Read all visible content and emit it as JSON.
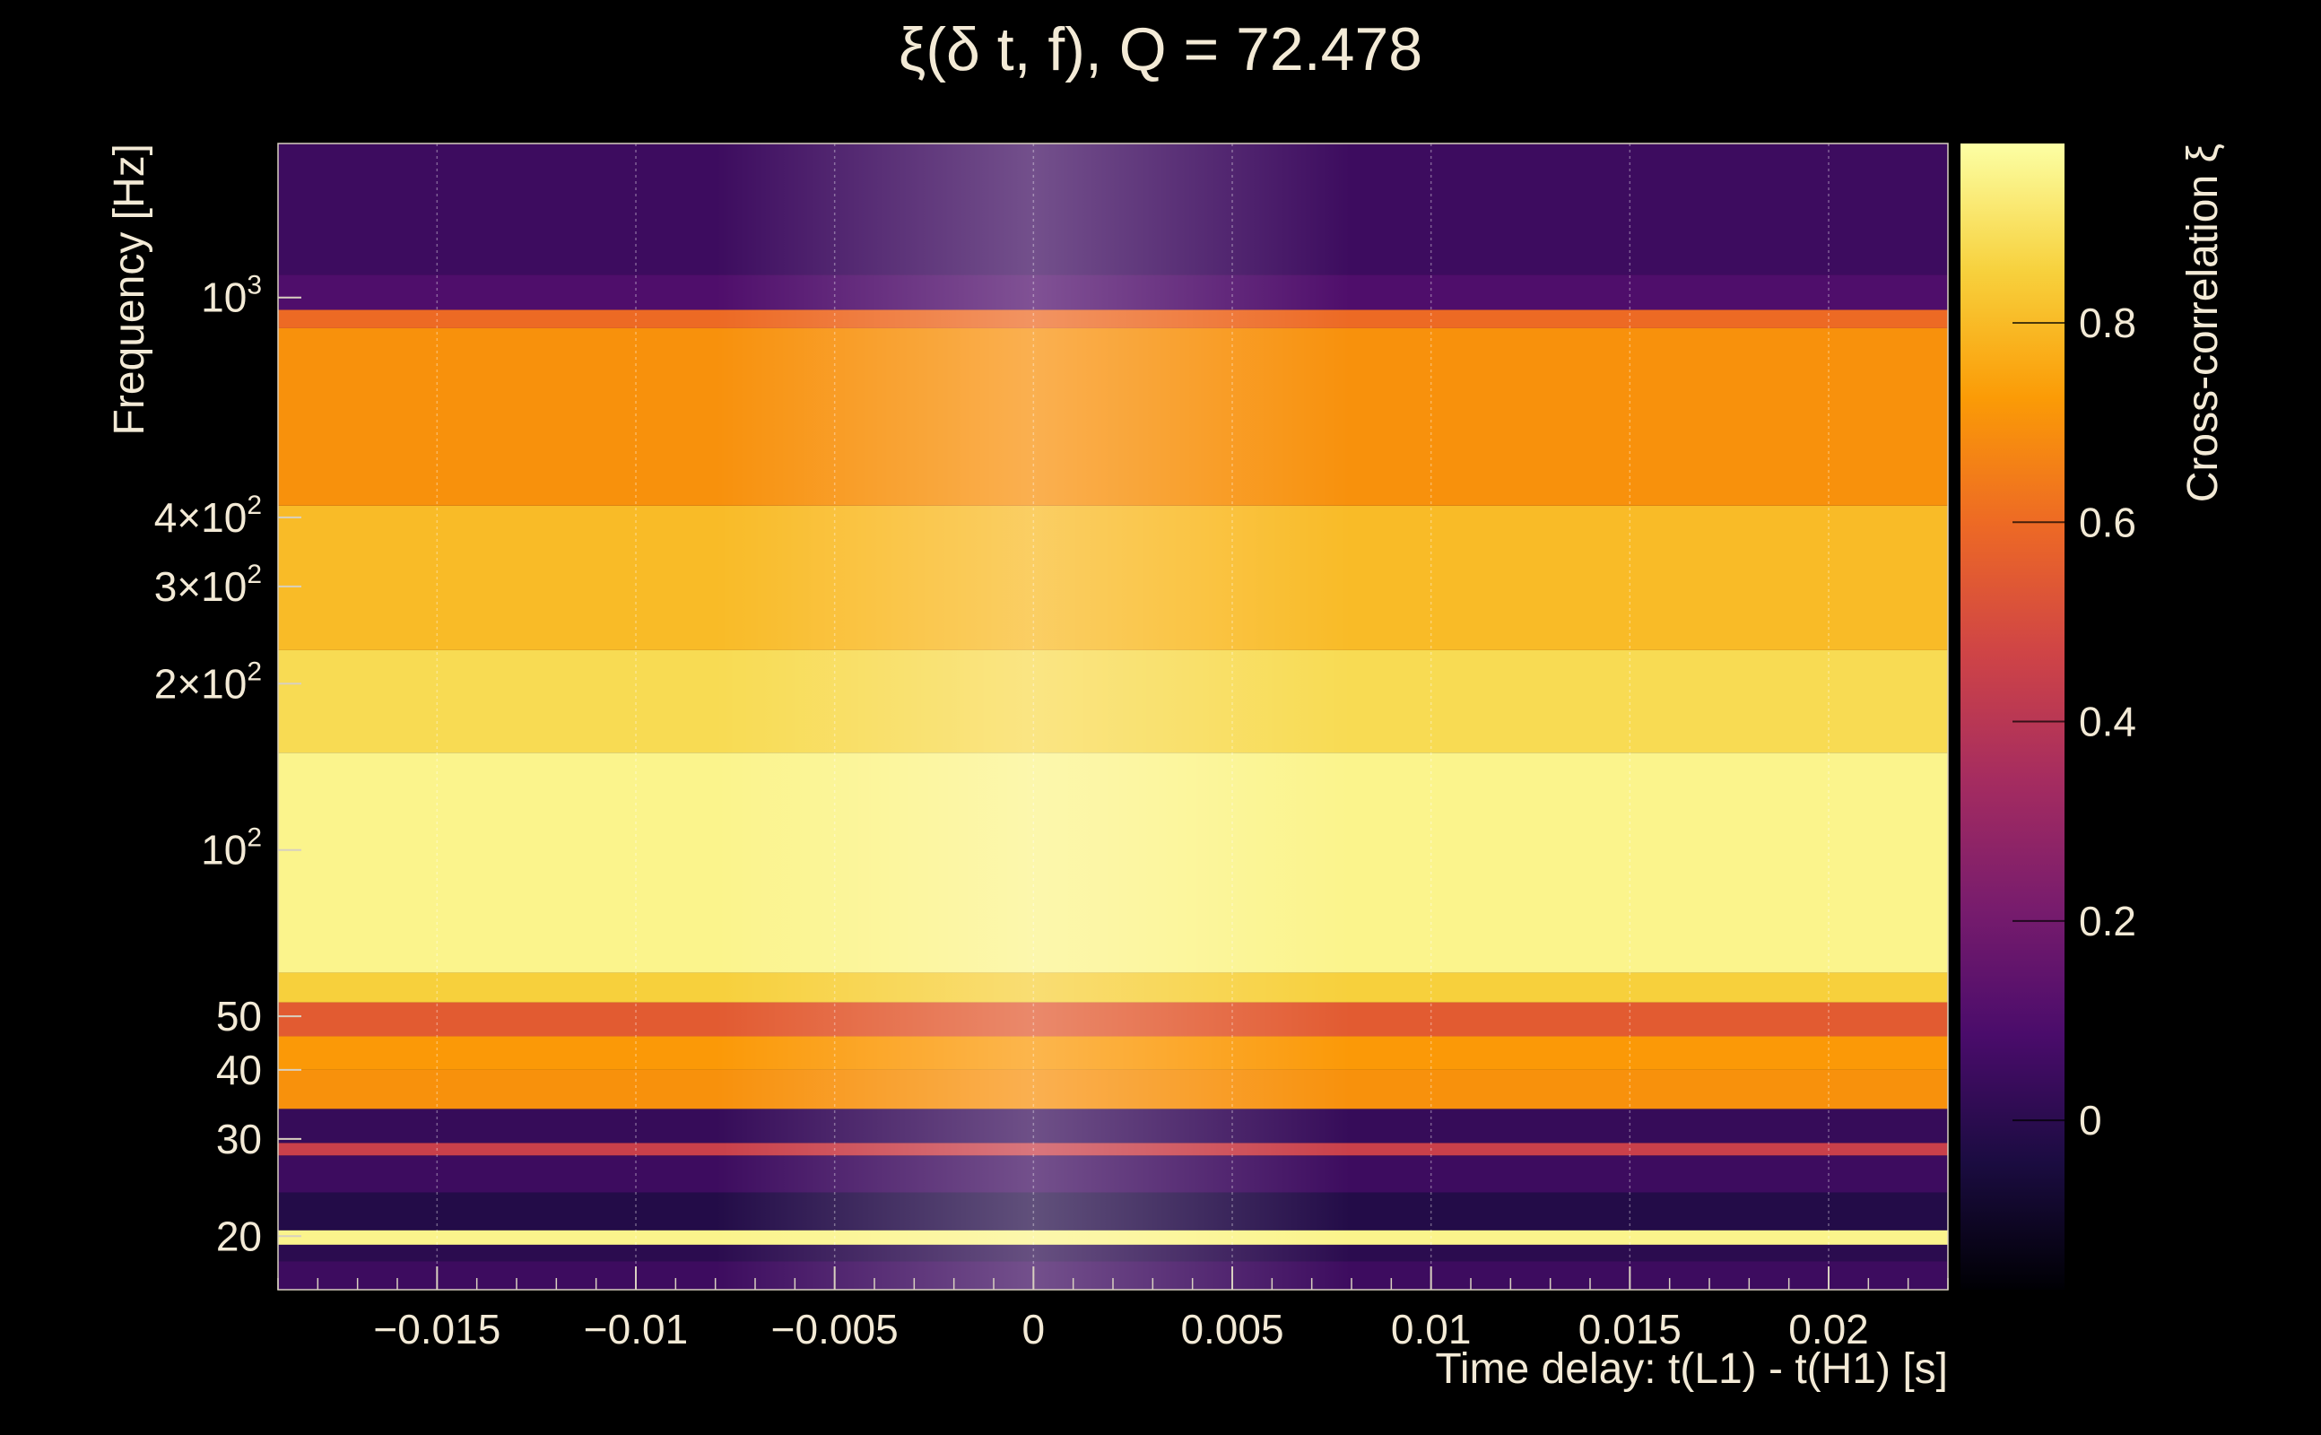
{
  "chart_data": {
    "type": "heatmap",
    "title": "ξ(δ t, f), Q = 72.478",
    "xlabel": "Time delay: t(L1) - t(H1) [s]",
    "ylabel": "Frequency [Hz]",
    "colorbar_label": "Cross-correlation ξ",
    "xlim": [
      -0.019,
      0.023
    ],
    "ylim": [
      16,
      1900
    ],
    "y_scale": "log",
    "grid": "vertical",
    "x_ticks": [
      {
        "value": -0.015,
        "label": "−0.015"
      },
      {
        "value": -0.01,
        "label": "−0.01"
      },
      {
        "value": -0.005,
        "label": "−0.005"
      },
      {
        "value": 0,
        "label": "0"
      },
      {
        "value": 0.005,
        "label": "0.005"
      },
      {
        "value": 0.01,
        "label": "0.01"
      },
      {
        "value": 0.015,
        "label": "0.015"
      },
      {
        "value": 0.02,
        "label": "0.02"
      }
    ],
    "y_ticks": [
      {
        "value": 20,
        "base": "20",
        "sup": ""
      },
      {
        "value": 30,
        "base": "30",
        "sup": ""
      },
      {
        "value": 40,
        "base": "40",
        "sup": ""
      },
      {
        "value": 50,
        "base": "50",
        "sup": ""
      },
      {
        "value": 100,
        "base": "10",
        "sup": "2"
      },
      {
        "value": 200,
        "base": "2×10",
        "sup": "2"
      },
      {
        "value": 300,
        "base": "3×10",
        "sup": "2"
      },
      {
        "value": 400,
        "base": "4×10",
        "sup": "2"
      },
      {
        "value": 1000,
        "base": "10",
        "sup": "3"
      }
    ],
    "colorbar": {
      "range": [
        -0.17,
        0.98
      ],
      "ticks": [
        {
          "value": 0,
          "label": "0"
        },
        {
          "value": 0.2,
          "label": "0.2"
        },
        {
          "value": 0.4,
          "label": "0.4"
        },
        {
          "value": 0.6,
          "label": "0.6"
        },
        {
          "value": 0.8,
          "label": "0.8"
        }
      ],
      "colormap": [
        "#000004",
        "#1b0c41",
        "#4a0c6b",
        "#781c6d",
        "#a52c60",
        "#cf4446",
        "#ed6925",
        "#fb9b06",
        "#f7d13d",
        "#fcffa4"
      ]
    },
    "bands": [
      {
        "f_low": 16,
        "f_high": 18,
        "value": 0.05
      },
      {
        "f_low": 18,
        "f_high": 19.3,
        "value": 0.0
      },
      {
        "f_low": 19.3,
        "f_high": 20.5,
        "value": 0.95
      },
      {
        "f_low": 20.5,
        "f_high": 24,
        "value": -0.02
      },
      {
        "f_low": 24,
        "f_high": 28,
        "value": 0.05
      },
      {
        "f_low": 28,
        "f_high": 29.5,
        "value": 0.45
      },
      {
        "f_low": 29.5,
        "f_high": 34,
        "value": 0.03
      },
      {
        "f_low": 34,
        "f_high": 40,
        "value": 0.7
      },
      {
        "f_low": 40,
        "f_high": 46,
        "value": 0.72
      },
      {
        "f_low": 46,
        "f_high": 53,
        "value": 0.55
      },
      {
        "f_low": 53,
        "f_high": 60,
        "value": 0.85
      },
      {
        "f_low": 60,
        "f_high": 150,
        "value": 0.95
      },
      {
        "f_low": 150,
        "f_high": 230,
        "value": 0.88
      },
      {
        "f_low": 230,
        "f_high": 420,
        "value": 0.8
      },
      {
        "f_low": 420,
        "f_high": 880,
        "value": 0.7
      },
      {
        "f_low": 880,
        "f_high": 950,
        "value": 0.6
      },
      {
        "f_low": 950,
        "f_high": 1100,
        "value": 0.1
      },
      {
        "f_low": 1100,
        "f_high": 1900,
        "value": 0.05
      }
    ],
    "peak_delay": 0.0
  }
}
